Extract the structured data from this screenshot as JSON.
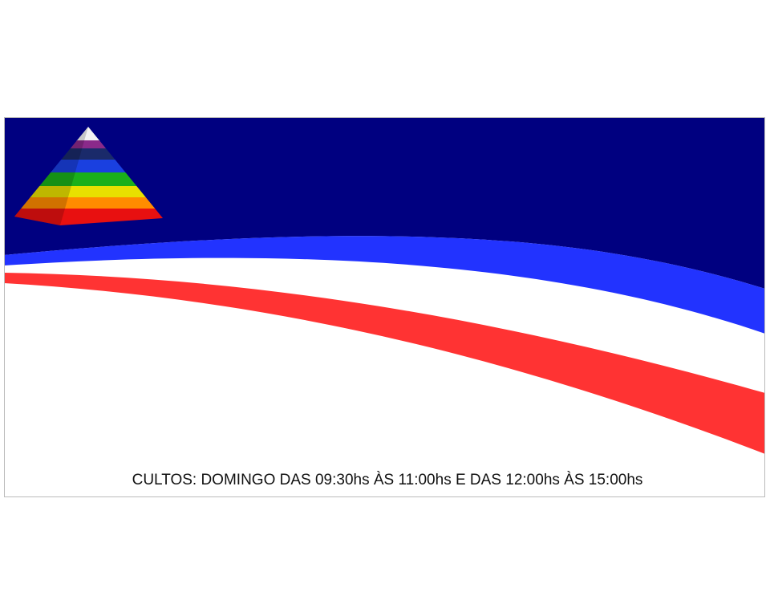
{
  "caption": "CULTOS: DOMINGO DAS 09:30hs ÀS 11:00hs E DAS 12:00hs ÀS 15:00hs"
}
